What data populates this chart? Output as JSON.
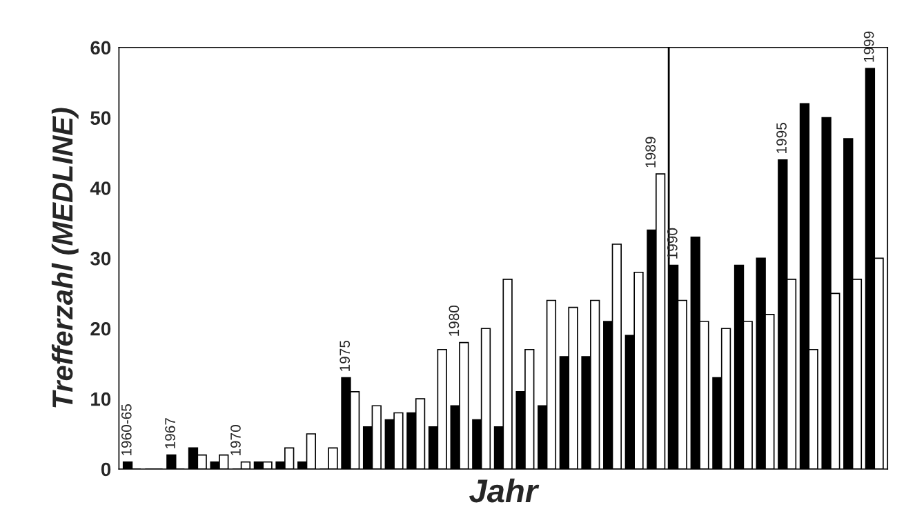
{
  "chart_data": {
    "type": "bar",
    "xlabel": "Jahr",
    "ylabel": "Trefferzahl (MEDLINE)",
    "categories": [
      "1960-65",
      null,
      "1967",
      null,
      null,
      "1970",
      null,
      null,
      null,
      null,
      "1975",
      null,
      null,
      null,
      null,
      "1980",
      null,
      null,
      null,
      null,
      null,
      null,
      null,
      null,
      "1989",
      "1990",
      null,
      null,
      null,
      null,
      "1995",
      null,
      null,
      null,
      "1999"
    ],
    "series": [
      {
        "color": "#000000",
        "values": [
          1,
          0,
          2,
          3,
          1,
          0,
          1,
          1,
          1,
          0,
          13,
          6,
          7,
          8,
          6,
          9,
          7,
          6,
          11,
          9,
          16,
          16,
          21,
          19,
          34,
          29,
          33,
          13,
          29,
          30,
          44,
          52,
          50,
          47,
          57
        ]
      },
      {
        "color": "#ffffff",
        "values": [
          0,
          0,
          0,
          2,
          2,
          1,
          1,
          3,
          5,
          3,
          11,
          9,
          8,
          10,
          17,
          18,
          20,
          27,
          17,
          24,
          23,
          24,
          32,
          28,
          42,
          24,
          21,
          20,
          21,
          22,
          27,
          17,
          25,
          27,
          30
        ]
      }
    ],
    "ylim": [
      0,
      60
    ],
    "yticks": [
      0,
      10,
      20,
      30,
      40,
      50,
      60
    ],
    "ref_lines": [
      {
        "axis": "x",
        "value": "1990",
        "color": "#000000"
      }
    ],
    "grid": false,
    "legend": false
  }
}
